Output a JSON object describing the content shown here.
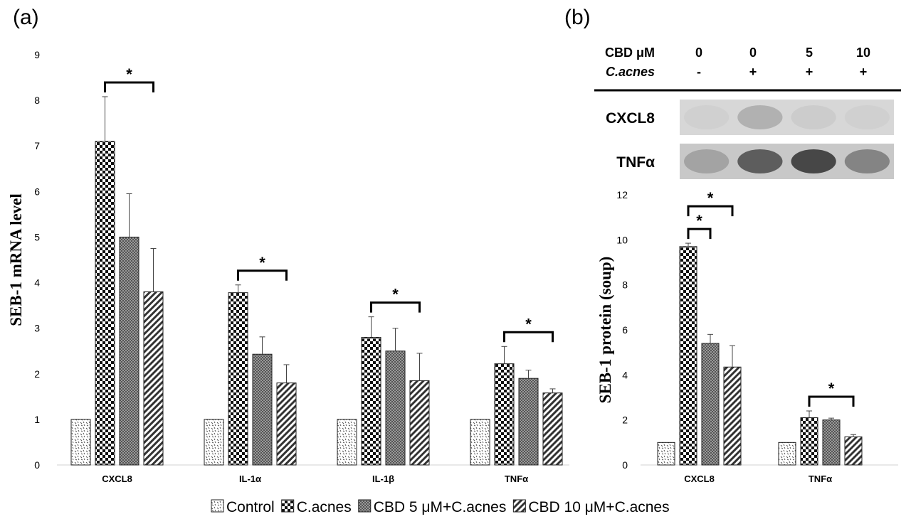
{
  "panel_a_label": "(a)",
  "panel_b_label": "(b)",
  "series_names": [
    "Control",
    "C.acnes",
    "CBD 5 μM+C.acnes",
    "CBD 10  μM+C.acnes"
  ],
  "blot": {
    "header_rows": [
      {
        "label": "CBD μM",
        "values": [
          "0",
          "0",
          "5",
          "10"
        ],
        "italic": false
      },
      {
        "label": "C.acnes",
        "values": [
          "-",
          "+",
          "+",
          "+"
        ],
        "italic": true
      }
    ],
    "bands": [
      {
        "label": "CXCL8",
        "intensity": [
          0.05,
          0.25,
          0.07,
          0.05
        ]
      },
      {
        "label": "TNFα",
        "intensity": [
          0.25,
          0.7,
          0.85,
          0.45
        ]
      }
    ]
  },
  "chart_data": [
    {
      "type": "bar",
      "panel": "a",
      "title": "",
      "xlabel": "",
      "ylabel": "SEB-1 mRNA level",
      "ylim": [
        0,
        9
      ],
      "yticks": [
        "0",
        "1",
        "2",
        "3",
        "4",
        "5",
        "6",
        "7",
        "8",
        "9"
      ],
      "categories": [
        "CXCL8",
        "IL-1α",
        "IL-1β",
        "TNFα"
      ],
      "series": [
        {
          "name": "Control",
          "values": [
            1,
            1,
            1,
            1
          ],
          "errors": [
            0,
            0,
            0,
            0
          ]
        },
        {
          "name": "C.acnes",
          "values": [
            7.1,
            3.78,
            2.8,
            2.22
          ],
          "errors": [
            0.98,
            0.17,
            0.45,
            0.38
          ]
        },
        {
          "name": "CBD 5 μM+C.acnes",
          "values": [
            5.0,
            2.43,
            2.5,
            1.9
          ],
          "errors": [
            0.95,
            0.38,
            0.5,
            0.18
          ]
        },
        {
          "name": "CBD 10  μM+C.acnes",
          "values": [
            3.8,
            1.8,
            1.85,
            1.58
          ],
          "errors": [
            0.95,
            0.4,
            0.6,
            0.09
          ]
        }
      ],
      "significance": [
        {
          "category": 0,
          "from": 1,
          "to": 3,
          "label": "*"
        },
        {
          "category": 1,
          "from": 1,
          "to": 3,
          "label": "*"
        },
        {
          "category": 2,
          "from": 1,
          "to": 3,
          "label": "*"
        },
        {
          "category": 3,
          "from": 1,
          "to": 3,
          "label": "*"
        }
      ]
    },
    {
      "type": "bar",
      "panel": "b",
      "title": "",
      "xlabel": "",
      "ylabel": "SEB-1 protein (soup)",
      "ylim": [
        0,
        12
      ],
      "yticks": [
        "0",
        "2",
        "4",
        "6",
        "8",
        "10",
        "12"
      ],
      "categories": [
        "CXCL8",
        "TNFα"
      ],
      "series": [
        {
          "name": "Control",
          "values": [
            1,
            1
          ],
          "errors": [
            0,
            0
          ]
        },
        {
          "name": "C.acnes",
          "values": [
            9.7,
            2.1
          ],
          "errors": [
            0.15,
            0.3
          ]
        },
        {
          "name": "CBD 5 μM+C.acnes",
          "values": [
            5.4,
            2.0
          ],
          "errors": [
            0.4,
            0.08
          ]
        },
        {
          "name": "CBD 10  μM+C.acnes",
          "values": [
            4.35,
            1.25
          ],
          "errors": [
            0.95,
            0.1
          ]
        }
      ],
      "significance": [
        {
          "category": 0,
          "from": 1,
          "to": 2,
          "label": "*"
        },
        {
          "category": 0,
          "from": 1,
          "to": 3,
          "label": "*"
        },
        {
          "category": 1,
          "from": 1,
          "to": 3,
          "label": "*"
        }
      ]
    }
  ]
}
